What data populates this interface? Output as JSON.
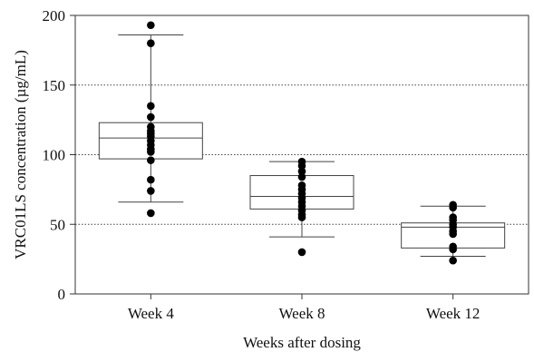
{
  "chart_data": {
    "type": "box",
    "title": "",
    "xlabel": "Weeks after dosing",
    "ylabel": "VRC01LS concentration (µg/mL)",
    "ylim": [
      0,
      200
    ],
    "yticks": [
      0,
      50,
      100,
      150,
      200
    ],
    "grid": {
      "y_dotted_lines": [
        50,
        100,
        150
      ]
    },
    "categories": [
      "Week 4",
      "Week 8",
      "Week 12"
    ],
    "boxes": [
      {
        "category": "Week 4",
        "whisker_low": 66,
        "q1": 97,
        "median": 112,
        "q3": 123,
        "whisker_high": 186
      },
      {
        "category": "Week 8",
        "whisker_low": 41,
        "q1": 61,
        "median": 70,
        "q3": 85,
        "whisker_high": 95
      },
      {
        "category": "Week 12",
        "whisker_low": 27,
        "q1": 33,
        "median": 48,
        "q3": 51,
        "whisker_high": 63
      }
    ],
    "points": [
      [
        193,
        180,
        135,
        127,
        120,
        117,
        115,
        113,
        110,
        107,
        104,
        102,
        96,
        82,
        74,
        58
      ],
      [
        95,
        92,
        88,
        84,
        78,
        75,
        72,
        69,
        66,
        63,
        60,
        57,
        55,
        30
      ],
      [
        64,
        62,
        55,
        53,
        50,
        48,
        45,
        43,
        34,
        32,
        24
      ]
    ],
    "colors": {
      "points": "#000000",
      "box": "#444444",
      "grid": "#444444"
    }
  }
}
